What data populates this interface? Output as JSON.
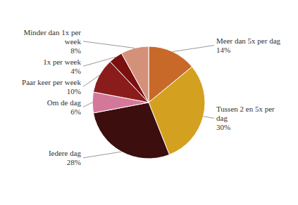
{
  "chart_data": {
    "type": "pie",
    "categories": [
      "Meer dan 5x per dag",
      "Tussen 2 en 5x per\ndag",
      "Iedere dag",
      "Om de dag",
      "Paar keer per week",
      "1x per week",
      "Minder dan 1x per\nweek"
    ],
    "values": [
      14,
      30,
      28,
      6,
      10,
      4,
      8
    ],
    "value_labels": [
      "14%",
      "30%",
      "28%",
      "6%",
      "10%",
      "4%",
      "8%"
    ],
    "colors": [
      "#C8692A",
      "#D4A020",
      "#3D0E0E",
      "#D4789A",
      "#8B1C1C",
      "#7B1010",
      "#D4917A"
    ],
    "data_labels": true
  }
}
